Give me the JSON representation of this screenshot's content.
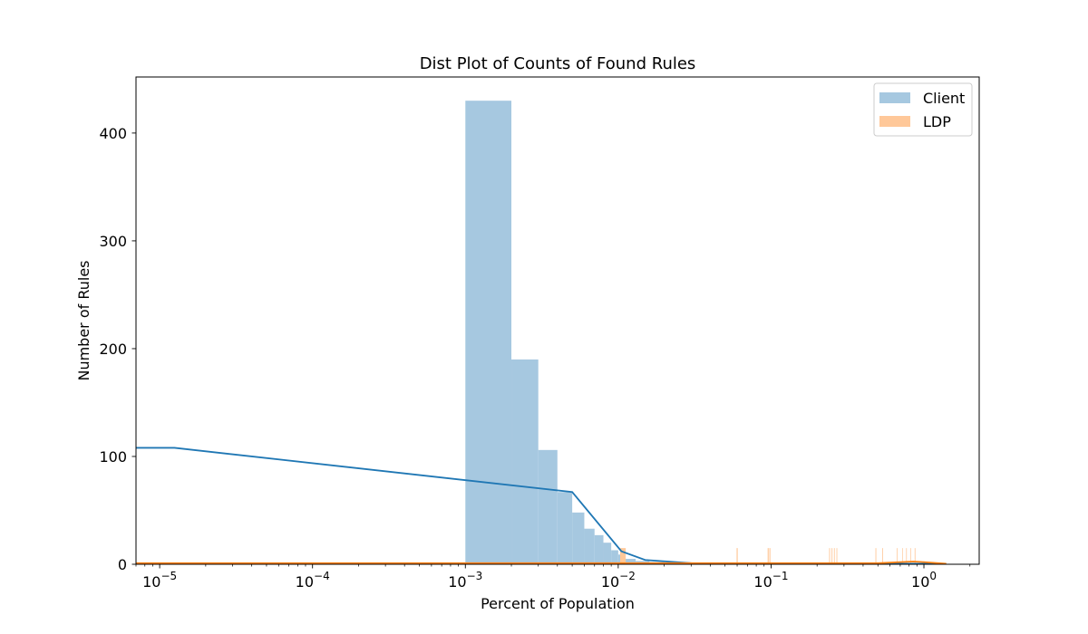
{
  "chart_data": {
    "type": "bar",
    "title": "Dist Plot of Counts of Found Rules",
    "xlabel": "Percent of Population",
    "ylabel": "Number of Rules",
    "x_scale": "log",
    "xlim": [
      7e-06,
      2.3
    ],
    "ylim": [
      0,
      452
    ],
    "grid": false,
    "legend_position": "top-right",
    "x_ticks": [
      {
        "value": 1e-05,
        "base": "10",
        "exp": "−5"
      },
      {
        "value": 0.0001,
        "base": "10",
        "exp": "−4"
      },
      {
        "value": 0.001,
        "base": "10",
        "exp": "−3"
      },
      {
        "value": 0.01,
        "base": "10",
        "exp": "−2"
      },
      {
        "value": 0.1,
        "base": "10",
        "exp": "−1"
      },
      {
        "value": 1,
        "base": "10",
        "exp": "0"
      }
    ],
    "y_ticks": [
      0,
      100,
      200,
      300,
      400
    ],
    "series": [
      {
        "name": "Client",
        "color": "#a6c8e0",
        "line_color": "#1f77b4",
        "bins": [
          {
            "x0": 0.001,
            "x1": 0.002,
            "value": 430
          },
          {
            "x0": 0.002,
            "x1": 0.003,
            "value": 190
          },
          {
            "x0": 0.003,
            "x1": 0.004,
            "value": 106
          },
          {
            "x0": 0.004,
            "x1": 0.005,
            "value": 67
          },
          {
            "x0": 0.005,
            "x1": 0.006,
            "value": 48
          },
          {
            "x0": 0.006,
            "x1": 0.007,
            "value": 33
          },
          {
            "x0": 0.007,
            "x1": 0.008,
            "value": 27
          },
          {
            "x0": 0.008,
            "x1": 0.009,
            "value": 20
          },
          {
            "x0": 0.009,
            "x1": 0.01,
            "value": 13
          },
          {
            "x0": 0.01,
            "x1": 0.011,
            "value": 9
          },
          {
            "x0": 0.011,
            "x1": 0.013,
            "value": 5
          },
          {
            "x0": 0.013,
            "x1": 0.016,
            "value": 3
          },
          {
            "x0": 0.016,
            "x1": 0.02,
            "value": 2
          },
          {
            "x0": 0.02,
            "x1": 0.03,
            "value": 1
          }
        ],
        "kde": {
          "x": [
            7e-06,
            1.25e-05,
            0.005,
            0.0105,
            0.015,
            0.03,
            0.1,
            0.3,
            0.6,
            1.0,
            1.4
          ],
          "y": [
            108,
            108,
            67,
            12,
            4,
            1,
            0.5,
            0.5,
            0.5,
            0.5,
            0.5
          ]
        }
      },
      {
        "name": "LDP",
        "color": "#ffc899",
        "line_color": "#ff7f0e",
        "bins": [
          {
            "x0": 0.0103,
            "x1": 0.0112,
            "value": 15
          },
          {
            "x0": 0.0595,
            "x1": 0.0605,
            "value": 15
          },
          {
            "x0": 0.095,
            "x1": 0.0965,
            "value": 15
          },
          {
            "x0": 0.0975,
            "x1": 0.099,
            "value": 15
          },
          {
            "x0": 0.24,
            "x1": 0.243,
            "value": 15
          },
          {
            "x0": 0.249,
            "x1": 0.252,
            "value": 15
          },
          {
            "x0": 0.258,
            "x1": 0.261,
            "value": 15
          },
          {
            "x0": 0.268,
            "x1": 0.271,
            "value": 15
          },
          {
            "x0": 0.482,
            "x1": 0.488,
            "value": 15
          },
          {
            "x0": 0.534,
            "x1": 0.54,
            "value": 15
          },
          {
            "x0": 0.665,
            "x1": 0.672,
            "value": 15
          },
          {
            "x0": 0.72,
            "x1": 0.727,
            "value": 15
          },
          {
            "x0": 0.765,
            "x1": 0.773,
            "value": 15
          },
          {
            "x0": 0.815,
            "x1": 0.823,
            "value": 15
          },
          {
            "x0": 0.87,
            "x1": 0.88,
            "value": 15
          }
        ],
        "kde": {
          "x": [
            7e-06,
            0.5,
            0.7,
            0.85,
            1.0,
            1.4
          ],
          "y": [
            1,
            1,
            2,
            2.5,
            2,
            0.5
          ]
        }
      }
    ]
  }
}
